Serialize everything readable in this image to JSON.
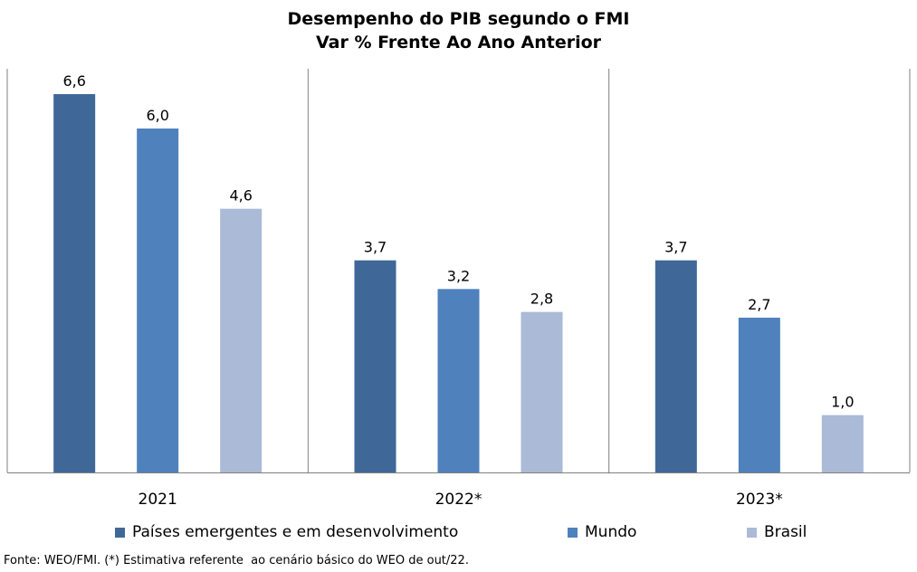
{
  "title_line1": "Desempenho do PIB segundo o FMI",
  "title_line2": "Var % Frente Ao Ano Anterior",
  "source_note": "Fonte: WEO/FMI. (*) Estimativa referente  ao cenário básico do WEO de out/22.",
  "colors": {
    "Países emergentes e em desenvolvimento": "#3f6899",
    "Mundo": "#4f81bd",
    "Brasil": "#aabad7",
    "axis": "#808080"
  },
  "chart_data": {
    "type": "bar",
    "categories": [
      "2021",
      "2022*",
      "2023*"
    ],
    "series": [
      {
        "name": "Países emergentes e em desenvolvimento",
        "values": [
          6.6,
          3.7,
          3.7
        ],
        "labels": [
          "6,6",
          "3,7",
          "3,7"
        ]
      },
      {
        "name": "Mundo",
        "values": [
          6.0,
          3.2,
          2.7
        ],
        "labels": [
          "6,0",
          "3,2",
          "2,7"
        ]
      },
      {
        "name": "Brasil",
        "values": [
          4.6,
          2.8,
          1.0
        ],
        "labels": [
          "4,6",
          "2,8",
          "1,0"
        ]
      }
    ],
    "title": "Desempenho do PIB segundo o FMI\nVar % Frente Ao Ano Anterior",
    "xlabel": "",
    "ylabel": "",
    "ylim": [
      0,
      7
    ],
    "grid": false,
    "legend": "bottom"
  }
}
